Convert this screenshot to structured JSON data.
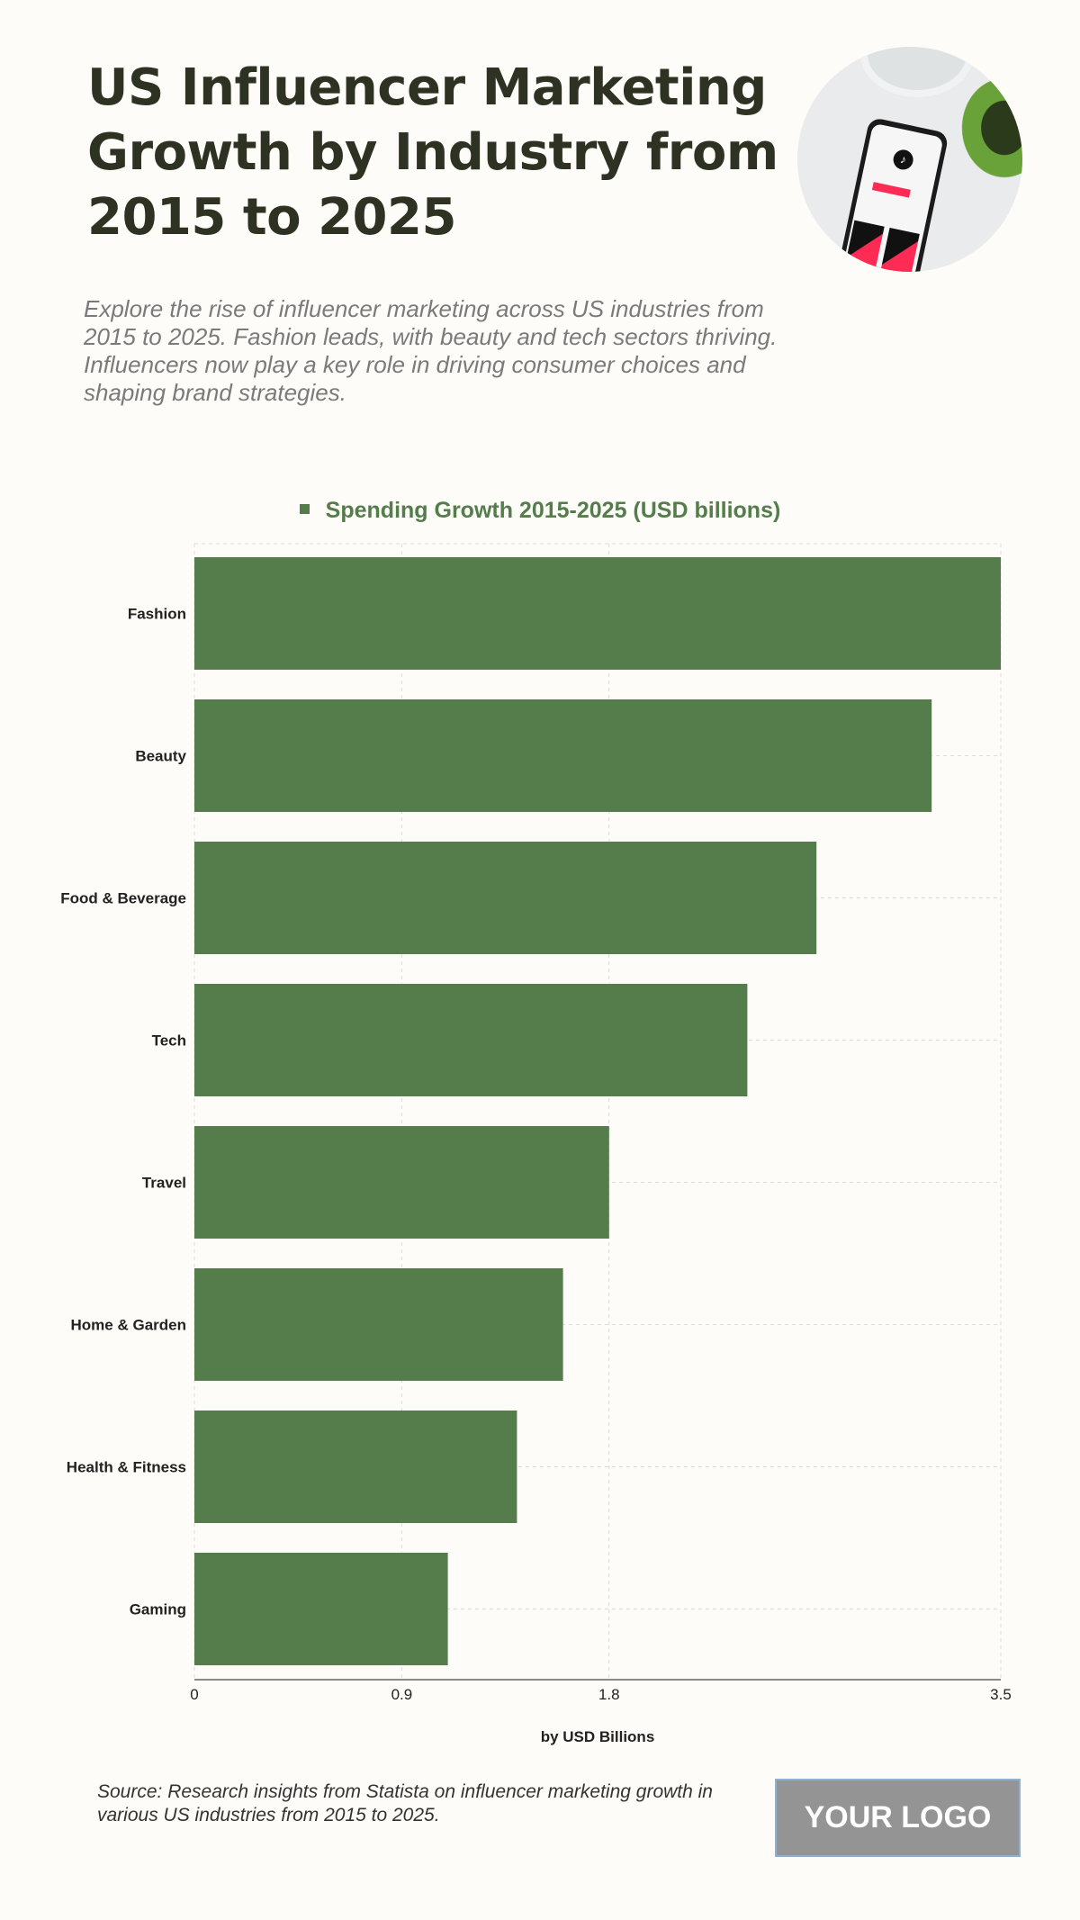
{
  "header": {
    "title": "US Influencer Marketing Growth by Industry from 2015 to 2025",
    "subtitle": "Explore the rise of influencer marketing across US industries from 2015 to 2025. Fashion leads, with beauty and tech sectors thriving. Influencers now play a key role in driving consumer choices and shaping brand strategies."
  },
  "chart_data": {
    "type": "bar",
    "orientation": "horizontal",
    "categories": [
      "Fashion",
      "Beauty",
      "Food & Beverage",
      "Tech",
      "Travel",
      "Home & Garden",
      "Health & Fitness",
      "Gaming"
    ],
    "series": [
      {
        "name": "Spending Growth 2015-2025 (USD billions)",
        "values": [
          3.5,
          3.2,
          2.7,
          2.4,
          1.8,
          1.6,
          1.4,
          1.1
        ],
        "color": "#547d4b"
      }
    ],
    "xlabel": "by USD Billions",
    "xlim": [
      0,
      3.5
    ],
    "xticks": [
      "0",
      "0.9",
      "1.8",
      "3.5"
    ],
    "grid": true,
    "legend": "top"
  },
  "footer": {
    "source": "Source: Research insights from Statista on influencer marketing growth in various US industries from 2015 to 2025.",
    "logo": "YOUR LOGO"
  }
}
